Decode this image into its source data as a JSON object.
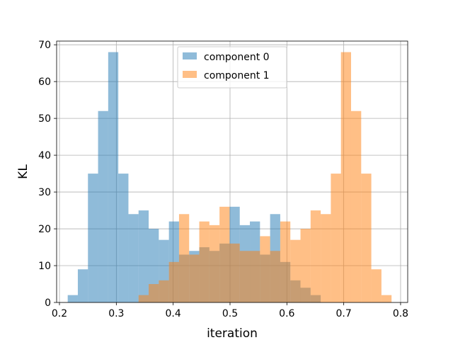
{
  "chart_data": {
    "type": "bar",
    "title": "",
    "xlabel": "iteration",
    "ylabel": "KL",
    "xlim": [
      0.195,
      0.8125
    ],
    "ylim": [
      0,
      71
    ],
    "grid": true,
    "legend_position": "top-center",
    "bin_width": 0.0178,
    "x_ticks": [
      0.2,
      0.3,
      0.4,
      0.5,
      0.6,
      0.7,
      0.8
    ],
    "y_ticks": [
      0,
      10,
      20,
      30,
      40,
      50,
      60,
      70
    ],
    "bin_starts": [
      0.2145,
      0.2323,
      0.2501,
      0.2679,
      0.2857,
      0.3035,
      0.3213,
      0.3391,
      0.3569,
      0.3747,
      0.3925,
      0.4103,
      0.4281,
      0.4459,
      0.4637,
      0.4815,
      0.4993,
      0.5171,
      0.5349,
      0.5527,
      0.5705,
      0.5883,
      0.6061,
      0.6239,
      0.6417,
      0.6595,
      0.6773,
      0.6951,
      0.7129,
      0.7307,
      0.7485,
      0.7663
    ],
    "series": [
      {
        "name": "component 0",
        "color": "#1f77b4",
        "opacity": 0.5,
        "values": [
          2,
          9,
          35,
          52,
          68,
          35,
          24,
          25,
          20,
          17,
          22,
          13,
          14,
          15,
          14,
          16,
          26,
          21,
          22,
          13,
          24,
          11,
          6,
          4,
          2,
          0,
          0,
          0,
          0,
          0,
          0,
          0
        ]
      },
      {
        "name": "component 1",
        "color": "#ff7f0e",
        "opacity": 0.5,
        "values": [
          0,
          0,
          0,
          0,
          0,
          0,
          0,
          2,
          5,
          6,
          11,
          24,
          13,
          22,
          21,
          26,
          16,
          14,
          14,
          18,
          14,
          22,
          17,
          20,
          25,
          24,
          35,
          68,
          52,
          35,
          9,
          2
        ]
      }
    ]
  }
}
